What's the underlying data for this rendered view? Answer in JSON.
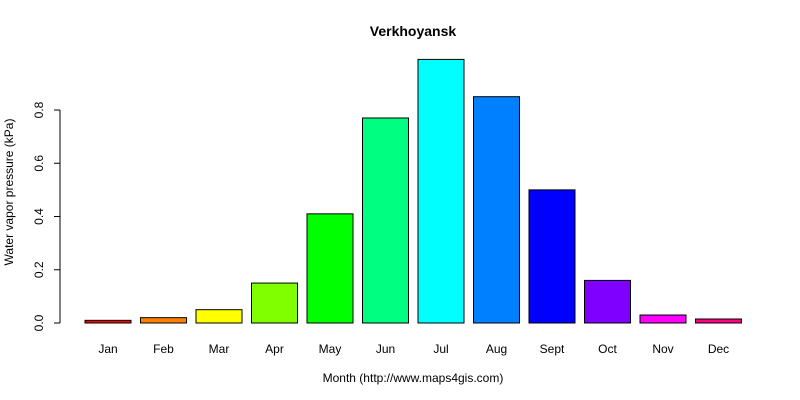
{
  "chart_data": {
    "type": "bar",
    "title": "Verkhoyansk",
    "xlabel": "Month (http://www.maps4gis.com)",
    "ylabel": "Water vapor pressure (kPa)",
    "categories": [
      "Jan",
      "Feb",
      "Mar",
      "Apr",
      "May",
      "Jun",
      "Jul",
      "Aug",
      "Sept",
      "Oct",
      "Nov",
      "Dec"
    ],
    "values": [
      0.01,
      0.02,
      0.05,
      0.15,
      0.41,
      0.77,
      0.99,
      0.85,
      0.5,
      0.16,
      0.03,
      0.015
    ],
    "colors": [
      "#ff0000",
      "#ff8000",
      "#ffff00",
      "#80ff00",
      "#00ff00",
      "#00ff80",
      "#00ffff",
      "#0080ff",
      "#0000ff",
      "#8000ff",
      "#ff00ff",
      "#ff0080"
    ],
    "y_ticks": [
      0.0,
      0.2,
      0.4,
      0.6,
      0.8
    ],
    "y_tick_labels": [
      "0.0",
      "0.2",
      "0.4",
      "0.6",
      "0.8"
    ],
    "ylim": [
      0,
      1.0
    ],
    "grid": false,
    "legend": "none"
  }
}
